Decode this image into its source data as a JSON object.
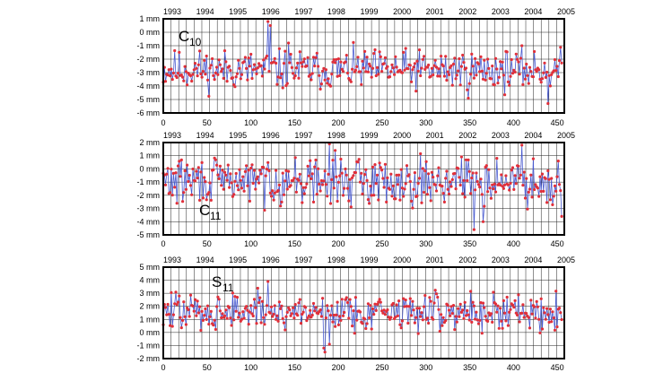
{
  "colors": {
    "series_line": "#4a5bd0",
    "series_marker": "#e0303a",
    "grid": "#222222",
    "frame": "#000000"
  },
  "top_axis_years": [
    "1993",
    "1994",
    "1995",
    "1996",
    "1997",
    "1998",
    "1999",
    "2000",
    "2001",
    "2002",
    "2003",
    "2004",
    "2005"
  ],
  "chart_data": [
    {
      "type": "line",
      "label_main": "C",
      "label_sub": "10",
      "x_ticks": [
        0,
        50,
        100,
        150,
        200,
        250,
        300,
        350,
        400,
        450
      ],
      "xlim": [
        0,
        458
      ],
      "y_ticks": [
        "1 mm",
        "0 mm",
        "-1 mm",
        "-2 mm",
        "-3 mm",
        "-4 mm",
        "-5 mm",
        "-6 mm"
      ],
      "ylim": [
        -6,
        1
      ],
      "mean": -2.8,
      "amp": 1.1,
      "seed": 11,
      "spikes": [
        [
          120,
          0.8
        ],
        [
          122,
          0.5
        ],
        [
          143,
          -0.8
        ],
        [
          348,
          -4.9
        ],
        [
          440,
          -5.3
        ]
      ]
    },
    {
      "type": "line",
      "label_main": "C",
      "label_sub": "11",
      "x_ticks": [
        0,
        50,
        100,
        150,
        200,
        250,
        300,
        350,
        400,
        450
      ],
      "xlim": [
        0,
        458
      ],
      "y_ticks": [
        "2 mm",
        "1 mm",
        "0 mm",
        "-1 mm",
        "-2 mm",
        "-3 mm",
        "-4 mm",
        "-5 mm"
      ],
      "ylim": [
        -5,
        2
      ],
      "mean": -0.9,
      "amp": 1.3,
      "seed": 29,
      "spikes": [
        [
          190,
          1.9
        ],
        [
          196,
          1.4
        ],
        [
          410,
          1.8
        ],
        [
          355,
          -4.6
        ],
        [
          365,
          -4.0
        ],
        [
          455,
          -3.6
        ]
      ]
    },
    {
      "type": "line",
      "label_main": "S",
      "label_sub": "11",
      "x_ticks": [
        0,
        50,
        100,
        150,
        200,
        250,
        300,
        350,
        400,
        450
      ],
      "xlim": [
        0,
        458
      ],
      "y_ticks": [
        "5 mm",
        "4 mm",
        "3 mm",
        "2 mm",
        "1 mm",
        "0 mm",
        "-1 mm",
        "-2 mm"
      ],
      "ylim": [
        -2,
        5
      ],
      "mean": 1.6,
      "amp": 1.1,
      "seed": 47,
      "spikes": [
        [
          120,
          3.9
        ],
        [
          185,
          -1.5
        ],
        [
          183,
          -1.2
        ],
        [
          190,
          -0.9
        ]
      ]
    }
  ]
}
